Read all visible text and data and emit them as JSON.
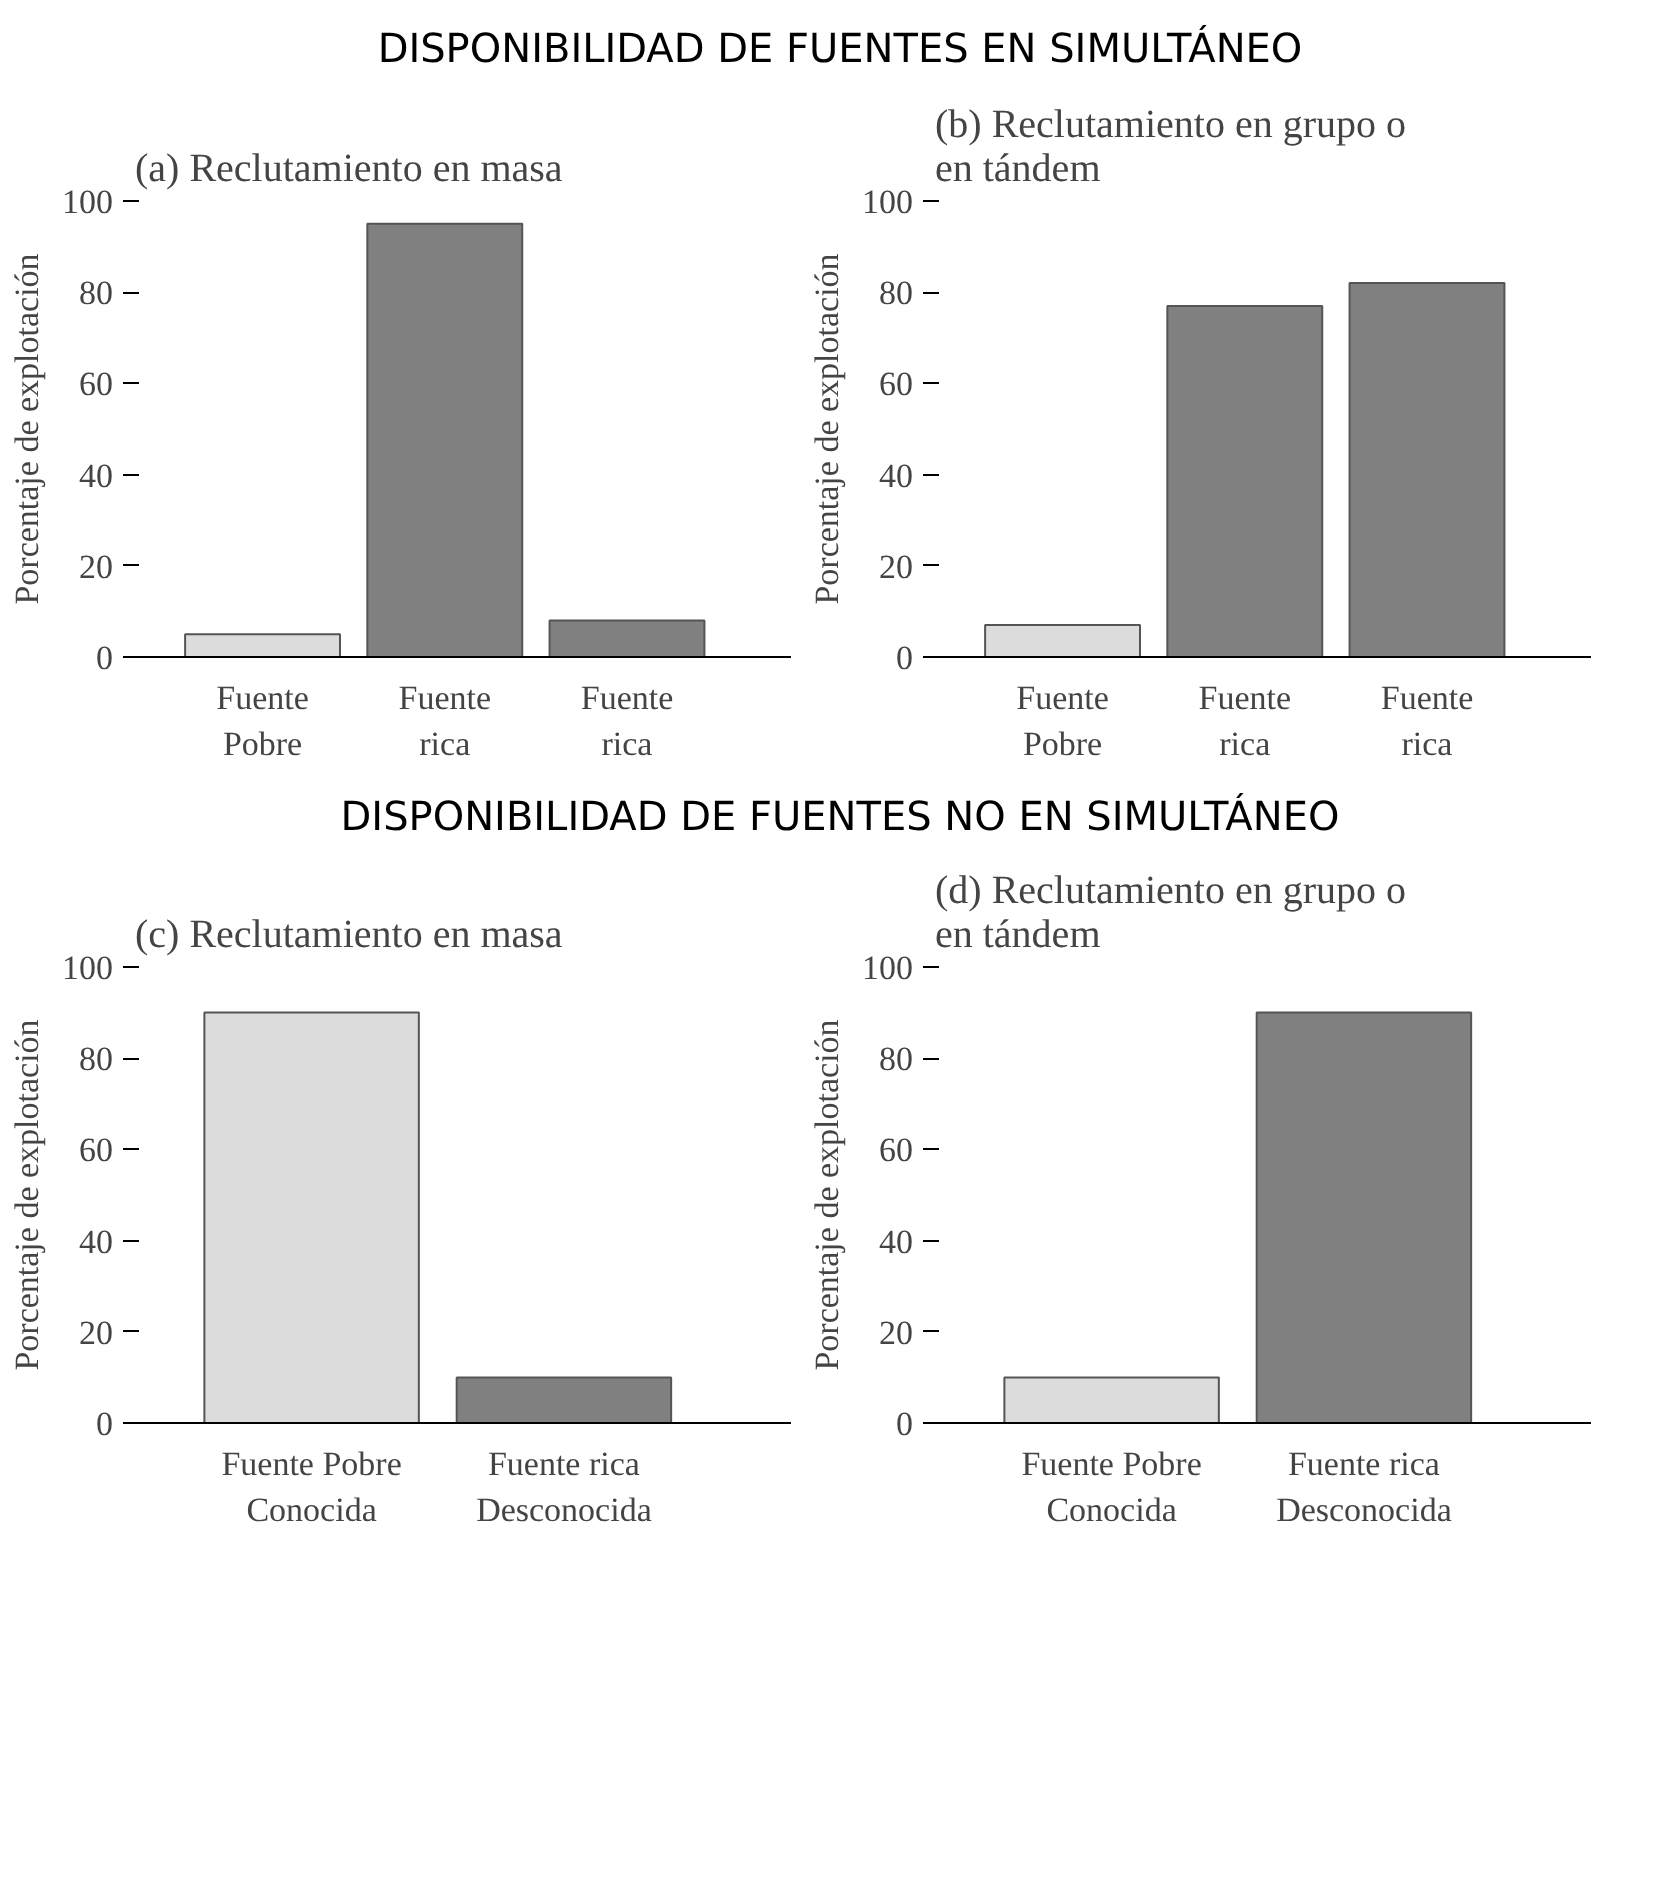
{
  "chart_data": [
    {
      "type": "bar",
      "title": "(a) Reclutamiento en masa",
      "annotations": [
        "DISPONIBILIDAD DE FUENTES EN SIMULTÁNEO"
      ],
      "ylabel": "Porcentaje de explotación",
      "categories": [
        "Fuente\nPobre",
        "Fuente\nrica",
        "Fuente\nrica"
      ],
      "values": [
        5,
        95,
        8
      ],
      "colors": [
        "#dcdcdc",
        "#808080",
        "#808080"
      ],
      "ylim": [
        0,
        100
      ],
      "yticks": [
        0,
        20,
        40,
        60,
        80,
        100
      ],
      "grid": false,
      "legend": false
    },
    {
      "type": "bar",
      "title": "(b) Reclutamiento en grupo o\nen tándem",
      "ylabel": "Porcentaje de explotación",
      "categories": [
        "Fuente\nPobre",
        "Fuente\nrica",
        "Fuente\nrica"
      ],
      "values": [
        7,
        77,
        82
      ],
      "colors": [
        "#dcdcdc",
        "#808080",
        "#808080"
      ],
      "ylim": [
        0,
        100
      ],
      "yticks": [
        0,
        20,
        40,
        60,
        80,
        100
      ],
      "grid": false,
      "legend": false
    },
    {
      "type": "bar",
      "title": "(c) Reclutamiento en masa",
      "annotations": [
        "DISPONIBILIDAD DE FUENTES NO EN SIMULTÁNEO"
      ],
      "ylabel": "Porcentaje de explotación",
      "categories": [
        "Fuente Pobre\nConocida",
        "Fuente rica\nDesconocida"
      ],
      "values": [
        90,
        10
      ],
      "colors": [
        "#dcdcdc",
        "#808080"
      ],
      "ylim": [
        0,
        100
      ],
      "yticks": [
        0,
        20,
        40,
        60,
        80,
        100
      ],
      "grid": false,
      "legend": false
    },
    {
      "type": "bar",
      "title": "(d) Reclutamiento en grupo o\nen tándem",
      "ylabel": "Porcentaje de explotación",
      "categories": [
        "Fuente Pobre\nConocida",
        "Fuente rica\nDesconocida"
      ],
      "values": [
        10,
        90
      ],
      "colors": [
        "#dcdcdc",
        "#808080"
      ],
      "ylim": [
        0,
        100
      ],
      "yticks": [
        0,
        20,
        40,
        60,
        80,
        100
      ],
      "grid": false,
      "legend": false
    }
  ]
}
